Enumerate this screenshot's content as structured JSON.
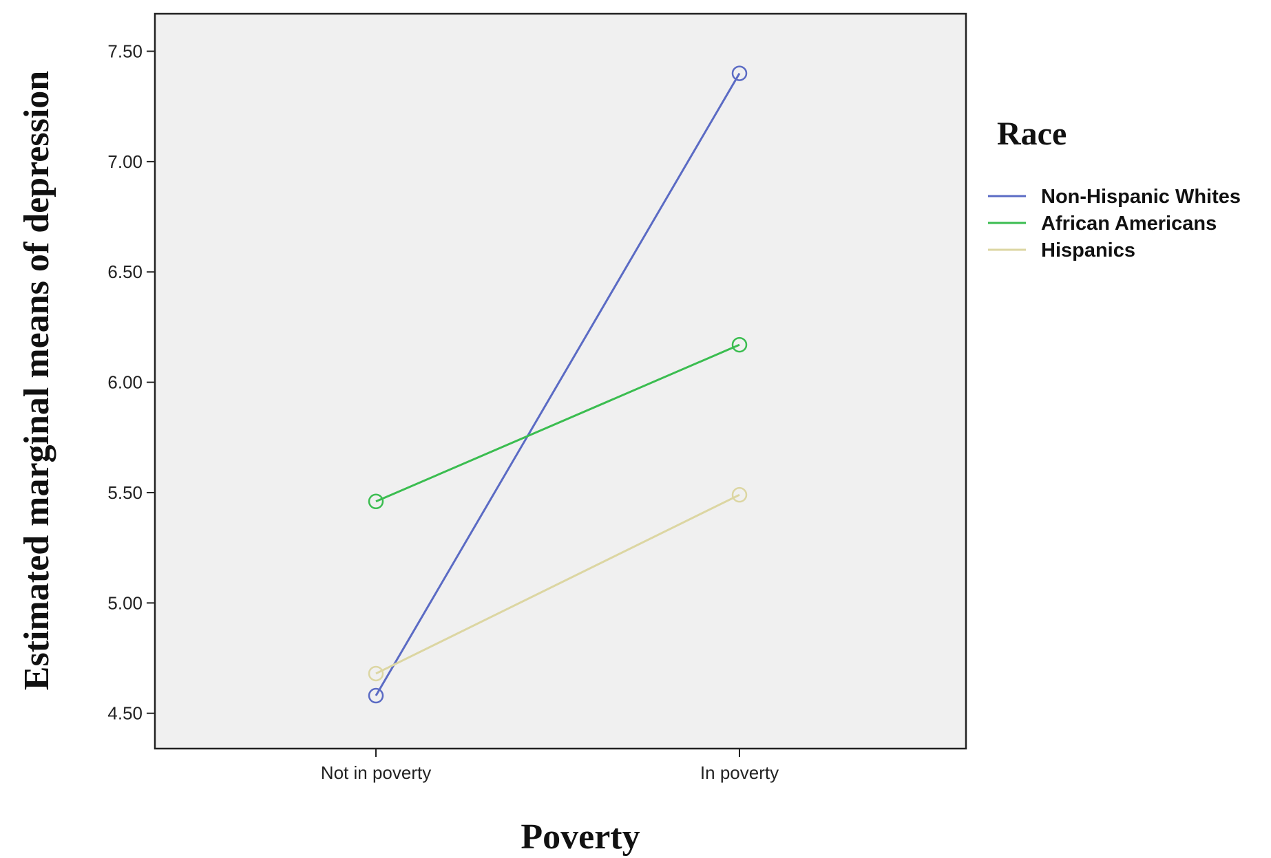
{
  "chart_data": {
    "type": "line",
    "title": "",
    "xlabel": "Poverty",
    "ylabel": "Estimated marginal means of depression",
    "categories": [
      "Not in poverty",
      "In poverty"
    ],
    "ylim": [
      4.34,
      7.67
    ],
    "yticks": [
      4.5,
      5.0,
      5.5,
      6.0,
      6.5,
      7.0,
      7.5
    ],
    "ytick_labels": [
      "4.50",
      "5.00",
      "5.50",
      "6.00",
      "6.50",
      "7.00",
      "7.50"
    ],
    "grid": false,
    "legend": {
      "title": "Race",
      "position": "right"
    },
    "series": [
      {
        "name": "Non-Hispanic Whites",
        "values": [
          4.58,
          7.4
        ],
        "color": "#5b6bc4"
      },
      {
        "name": "African Americans",
        "values": [
          5.46,
          6.17
        ],
        "color": "#3bbd50"
      },
      {
        "name": "Hispanics",
        "values": [
          4.68,
          5.49
        ],
        "color": "#dcd6a2"
      }
    ]
  }
}
